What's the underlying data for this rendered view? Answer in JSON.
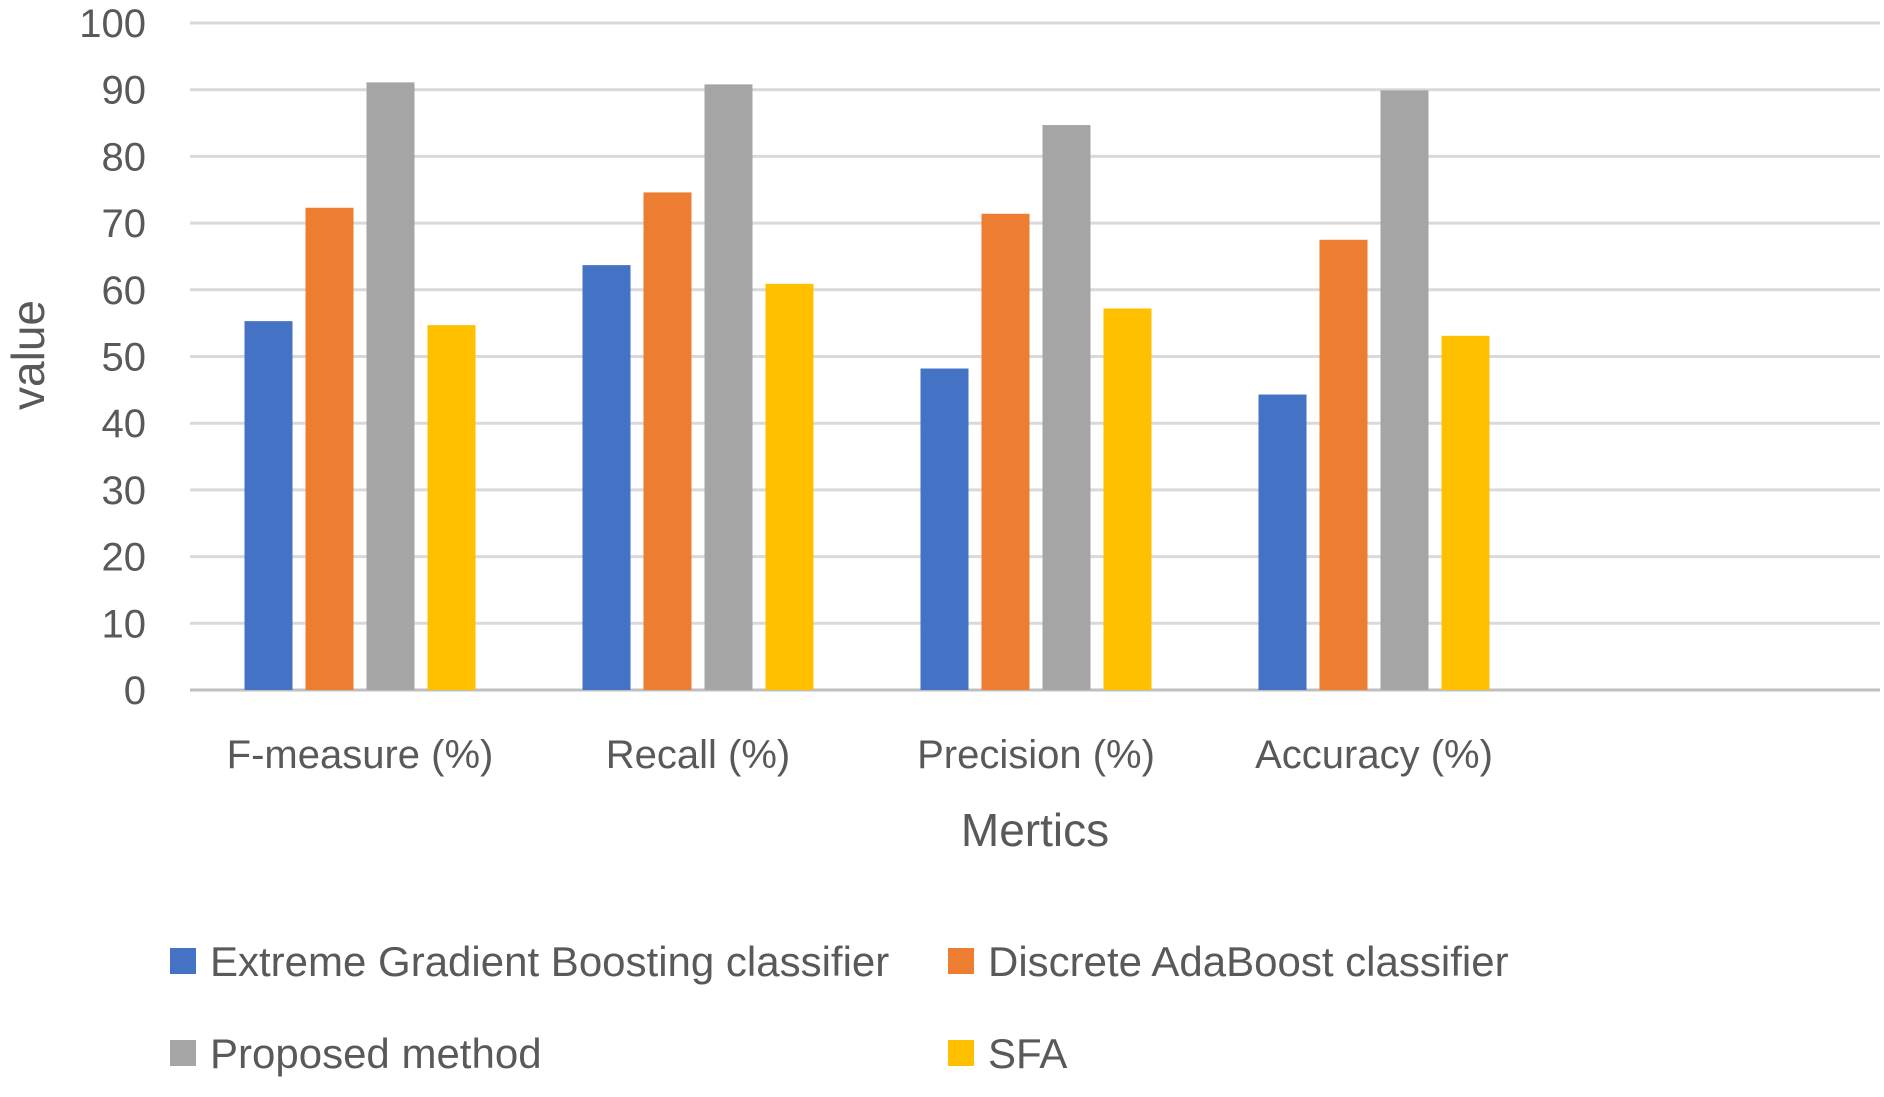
{
  "chart_data": {
    "type": "bar",
    "title": "",
    "xlabel": "Mertics",
    "ylabel": "value",
    "ylim": [
      0,
      100
    ],
    "yticks": [
      0,
      10,
      20,
      30,
      40,
      50,
      60,
      70,
      80,
      90,
      100
    ],
    "grid": true,
    "legend_position": "bottom",
    "categories": [
      "F-measure (%)",
      "Recall (%)",
      "Precision (%)",
      "Accuracy (%)"
    ],
    "series": [
      {
        "name": "Extreme Gradient Boosting classifier",
        "color": "#4472C4",
        "values": [
          55.3,
          63.7,
          48.2,
          44.3
        ]
      },
      {
        "name": "Discrete AdaBoost classifier",
        "color": "#ED7D31",
        "values": [
          72.3,
          74.6,
          71.4,
          67.5
        ]
      },
      {
        "name": "Proposed method",
        "color": "#A5A5A5",
        "values": [
          91.1,
          90.8,
          84.7,
          89.9
        ]
      },
      {
        "name": "SFA",
        "color": "#FFC000",
        "values": [
          54.7,
          60.9,
          57.2,
          53.1
        ]
      }
    ],
    "colors": {
      "gridline": "#D9D9D9",
      "axis_line": "#BFBFBF",
      "text": "#595959"
    }
  }
}
